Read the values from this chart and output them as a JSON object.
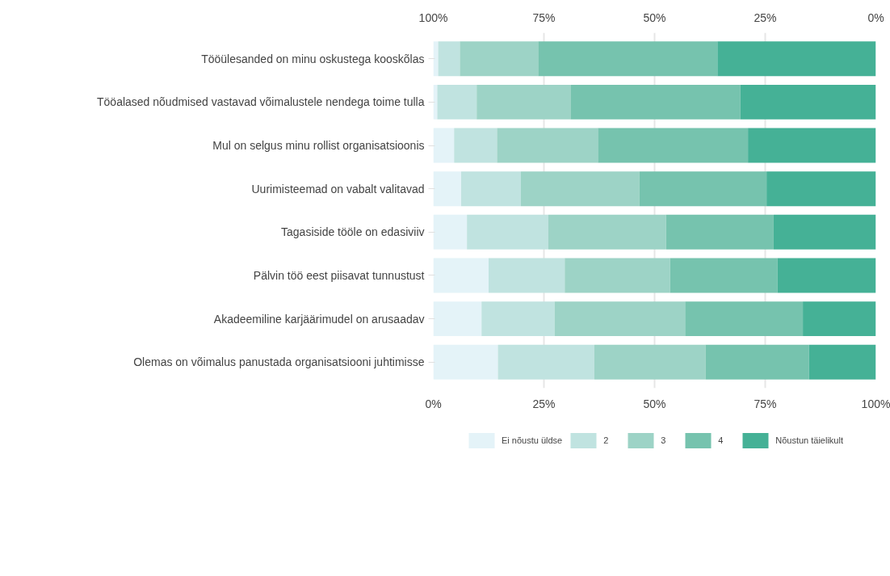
{
  "chart_data": {
    "type": "bar",
    "orientation": "horizontal",
    "stacked": true,
    "categories": [
      "Tööülesanded on minu oskustega kooskõlas",
      "Tööalased nõudmised vastavad võimalustele nendega toime tulla",
      "Mul on selgus minu rollist organisatsioonis",
      "Uurimisteemad on vabalt valitavad",
      "Tagasiside tööle on edasiviiv",
      "Pälvin töö eest piisavat tunnustust",
      "Akadeemiline karjäärimudel on arusaadav",
      "Olemas on võimalus panustada organisatsiooni juhtimisse"
    ],
    "series": [
      {
        "name": "Ei nõustu üldse",
        "color": "#e4f3f8",
        "values": [
          1.1,
          0.9,
          4.7,
          6.3,
          7.6,
          12.5,
          10.9,
          14.6
        ]
      },
      {
        "name": "2",
        "color": "#c0e3e0",
        "values": [
          4.9,
          8.9,
          9.7,
          13.5,
          18.4,
          17.2,
          16.5,
          21.8
        ]
      },
      {
        "name": "3",
        "color": "#9dd3c6",
        "values": [
          17.7,
          21.2,
          22.8,
          26.8,
          26.6,
          23.8,
          29.5,
          25.1
        ]
      },
      {
        "name": "4",
        "color": "#76c3ae",
        "values": [
          40.5,
          38.4,
          33.9,
          28.7,
          24.3,
          24.3,
          26.6,
          23.4
        ]
      },
      {
        "name": "Nõustun täielikult",
        "color": "#45b196",
        "values": [
          35.8,
          30.6,
          28.9,
          24.7,
          23.1,
          22.2,
          16.5,
          15.1
        ]
      }
    ],
    "xlim": [
      0,
      100
    ],
    "xticks": [
      {
        "value": 0,
        "label": "0%"
      },
      {
        "value": 25,
        "label": "25%"
      },
      {
        "value": 50,
        "label": "50%"
      },
      {
        "value": 75,
        "label": "75%"
      },
      {
        "value": 100,
        "label": "100%"
      }
    ],
    "x2lim": [
      100,
      0
    ],
    "x2ticks": [
      {
        "value": 100,
        "label": "100%"
      },
      {
        "value": 75,
        "label": "75%"
      },
      {
        "value": 50,
        "label": "50%"
      },
      {
        "value": 25,
        "label": "25%"
      },
      {
        "value": 0,
        "label": "0%"
      }
    ],
    "grid": "x",
    "legend": "bottom"
  }
}
